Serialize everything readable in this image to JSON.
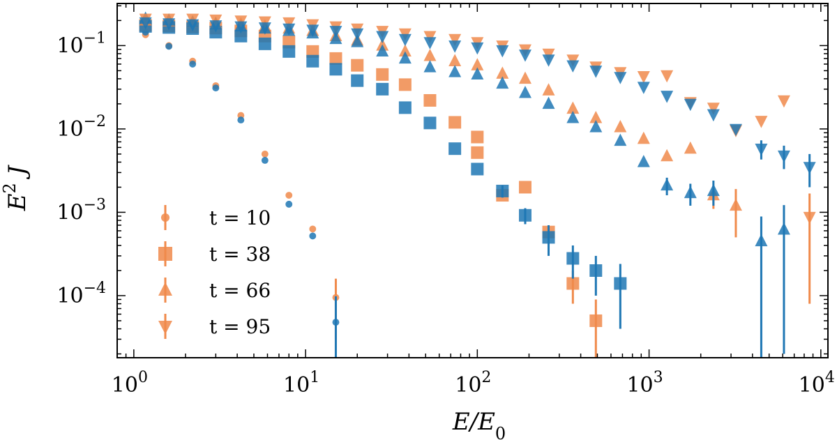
{
  "chart_data": {
    "type": "scatter",
    "x_scale": "log",
    "y_scale": "log",
    "xlim": [
      0.8,
      11000
    ],
    "ylim": [
      1.8e-05,
      0.32
    ],
    "xlabel": "E/E0",
    "ylabel": "E^2 J",
    "x_ticks": [
      {
        "value": 1,
        "base": "10",
        "exp": "0"
      },
      {
        "value": 10,
        "base": "10",
        "exp": "1"
      },
      {
        "value": 100,
        "base": "10",
        "exp": "2"
      },
      {
        "value": 1000,
        "base": "10",
        "exp": "3"
      },
      {
        "value": 10000,
        "base": "10",
        "exp": "4"
      }
    ],
    "y_ticks": [
      {
        "value": 0.1,
        "base": "10",
        "exp": "−1"
      },
      {
        "value": 0.01,
        "base": "10",
        "exp": "−2"
      },
      {
        "value": 0.001,
        "base": "10",
        "exp": "−3"
      },
      {
        "value": 0.0001,
        "base": "10",
        "exp": "−4"
      }
    ],
    "legend_position": "lower-left",
    "colors": {
      "orange": "#f08a4b",
      "blue": "#1f77b4"
    },
    "series": [
      {
        "name": "t = 10",
        "marker": "circle",
        "orange": [
          [
            1.17,
            0.135
          ],
          [
            1.6,
            0.1
          ],
          [
            2.2,
            0.065
          ],
          [
            3.0,
            0.033
          ],
          [
            4.2,
            0.0145
          ],
          [
            5.8,
            0.005
          ],
          [
            8.0,
            0.0016
          ],
          [
            11.0,
            0.00063
          ],
          [
            15.0,
            9.5e-05
          ]
        ],
        "orange_err": [
          0,
          0,
          0,
          0,
          0,
          0,
          0,
          0,
          6.5e-05
        ],
        "blue": [
          [
            1.17,
            0.145
          ],
          [
            1.6,
            0.098
          ],
          [
            2.2,
            0.06
          ],
          [
            3.0,
            0.031
          ],
          [
            4.2,
            0.0128
          ],
          [
            5.8,
            0.0042
          ],
          [
            8.0,
            0.00125
          ],
          [
            11.0,
            0.00052
          ],
          [
            15.0,
            4.8e-05
          ]
        ],
        "blue_err": [
          0,
          0,
          0,
          0,
          0,
          0,
          0,
          0,
          5e-05
        ]
      },
      {
        "name": "t = 38",
        "marker": "square",
        "orange": [
          [
            1.17,
            0.175
          ],
          [
            1.6,
            0.172
          ],
          [
            2.2,
            0.168
          ],
          [
            3.0,
            0.162
          ],
          [
            4.2,
            0.15
          ],
          [
            5.8,
            0.13
          ],
          [
            8.0,
            0.11
          ],
          [
            11.0,
            0.085
          ],
          [
            15.0,
            0.07
          ],
          [
            20.0,
            0.058
          ],
          [
            28.0,
            0.045
          ],
          [
            38.0,
            0.034
          ],
          [
            53.0,
            0.022
          ],
          [
            74.0,
            0.012
          ],
          [
            100.0,
            0.0052
          ],
          [
            100.0,
            0.008
          ],
          [
            140.0,
            0.0016
          ],
          [
            190.0,
            0.002
          ],
          [
            260.0,
            0.00058
          ],
          [
            360.0,
            0.00014
          ],
          [
            490.0,
            5e-05
          ]
        ],
        "orange_err": [
          0,
          0,
          0,
          0,
          0,
          0,
          0,
          0,
          0,
          0,
          0,
          0,
          0,
          0,
          0,
          0,
          0,
          0,
          0.0001,
          6e-05,
          4e-05
        ],
        "blue": [
          [
            1.17,
            0.17
          ],
          [
            1.6,
            0.165
          ],
          [
            2.2,
            0.16
          ],
          [
            3.0,
            0.145
          ],
          [
            4.2,
            0.13
          ],
          [
            5.8,
            0.105
          ],
          [
            8.0,
            0.085
          ],
          [
            11.0,
            0.065
          ],
          [
            15.0,
            0.052
          ],
          [
            20.0,
            0.038
          ],
          [
            28.0,
            0.03
          ],
          [
            38.0,
            0.018
          ],
          [
            53.0,
            0.0118
          ],
          [
            74.0,
            0.0058
          ],
          [
            100.0,
            0.0033
          ],
          [
            140.0,
            0.0018
          ],
          [
            190.0,
            0.00092
          ],
          [
            260.0,
            0.0005
          ],
          [
            360.0,
            0.00028
          ],
          [
            490.0,
            0.0002
          ],
          [
            680.0,
            0.00014
          ]
        ],
        "blue_err": [
          0,
          0,
          0,
          0,
          0,
          0,
          0,
          0,
          0,
          0,
          0,
          0,
          0,
          0,
          0,
          0.0003,
          0.0002,
          0.0002,
          0.00012,
          0.0001,
          0.0001
        ]
      },
      {
        "name": "t = 66",
        "marker": "triangle-up",
        "orange": [
          [
            1.17,
            0.2
          ],
          [
            1.6,
            0.195
          ],
          [
            2.2,
            0.19
          ],
          [
            3.0,
            0.185
          ],
          [
            4.2,
            0.18
          ],
          [
            5.8,
            0.17
          ],
          [
            8.0,
            0.16
          ],
          [
            11.0,
            0.15
          ],
          [
            15.0,
            0.13
          ],
          [
            20.0,
            0.115
          ],
          [
            28.0,
            0.1
          ],
          [
            38.0,
            0.085
          ],
          [
            53.0,
            0.075
          ],
          [
            74.0,
            0.065
          ],
          [
            100.0,
            0.058
          ],
          [
            140.0,
            0.046
          ],
          [
            190.0,
            0.04
          ],
          [
            260.0,
            0.029
          ],
          [
            360.0,
            0.0175
          ],
          [
            490.0,
            0.0135
          ],
          [
            680.0,
            0.0105
          ],
          [
            930.0,
            0.0076
          ],
          [
            1270.0,
            0.0047
          ],
          [
            1740.0,
            0.0058
          ],
          [
            2370.0,
            0.0016
          ],
          [
            3200.0,
            0.0012
          ]
        ],
        "orange_err": [
          0,
          0,
          0,
          0,
          0,
          0,
          0,
          0,
          0,
          0,
          0,
          0,
          0,
          0,
          0,
          0,
          0,
          0,
          0,
          0,
          0,
          0,
          0,
          0,
          0.0005,
          0.0007
        ],
        "blue": [
          [
            1.17,
            0.21
          ],
          [
            1.6,
            0.2
          ],
          [
            2.2,
            0.19
          ],
          [
            3.0,
            0.18
          ],
          [
            4.2,
            0.17
          ],
          [
            5.8,
            0.16
          ],
          [
            8.0,
            0.15
          ],
          [
            11.0,
            0.14
          ],
          [
            15.0,
            0.12
          ],
          [
            20.0,
            0.11
          ],
          [
            28.0,
            0.085
          ],
          [
            38.0,
            0.07
          ],
          [
            53.0,
            0.055
          ],
          [
            74.0,
            0.048
          ],
          [
            100.0,
            0.045
          ],
          [
            140.0,
            0.035
          ],
          [
            190.0,
            0.027
          ],
          [
            260.0,
            0.02
          ],
          [
            360.0,
            0.0135
          ],
          [
            490.0,
            0.0105
          ],
          [
            680.0,
            0.0072
          ],
          [
            930.0,
            0.004
          ],
          [
            1270.0,
            0.0021
          ],
          [
            1740.0,
            0.0017
          ],
          [
            2370.0,
            0.0018
          ],
          [
            4500.0,
            0.00045
          ],
          [
            6100.0,
            0.00062
          ]
        ],
        "blue_err": [
          0,
          0,
          0,
          0,
          0,
          0,
          0,
          0,
          0,
          0,
          0,
          0,
          0,
          0,
          0,
          0,
          0,
          0,
          0,
          0,
          0,
          0,
          0.0005,
          0.0005,
          0.0006,
          0.00044,
          0.0006
        ]
      },
      {
        "name": "t = 95",
        "marker": "triangle-down",
        "orange": [
          [
            1.17,
            0.21
          ],
          [
            1.6,
            0.21
          ],
          [
            2.2,
            0.21
          ],
          [
            3.0,
            0.205
          ],
          [
            4.2,
            0.2
          ],
          [
            5.8,
            0.195
          ],
          [
            8.0,
            0.19
          ],
          [
            11.0,
            0.18
          ],
          [
            15.0,
            0.17
          ],
          [
            20.0,
            0.16
          ],
          [
            28.0,
            0.15
          ],
          [
            38.0,
            0.14
          ],
          [
            53.0,
            0.13
          ],
          [
            74.0,
            0.12
          ],
          [
            100.0,
            0.11
          ],
          [
            140.0,
            0.1
          ],
          [
            190.0,
            0.09
          ],
          [
            260.0,
            0.08
          ],
          [
            360.0,
            0.068
          ],
          [
            490.0,
            0.056
          ],
          [
            680.0,
            0.048
          ],
          [
            930.0,
            0.043
          ],
          [
            1270.0,
            0.044
          ],
          [
            1740.0,
            0.021
          ],
          [
            2370.0,
            0.018
          ],
          [
            3200.0,
            0.0097
          ],
          [
            4500.0,
            0.0125
          ],
          [
            6100.0,
            0.022
          ],
          [
            8600.0,
            0.00088
          ]
        ],
        "orange_err": [
          0,
          0,
          0,
          0,
          0,
          0,
          0,
          0,
          0,
          0,
          0,
          0,
          0,
          0,
          0,
          0,
          0,
          0,
          0,
          0,
          0,
          0,
          0,
          0,
          0,
          0,
          0,
          0,
          0.0008
        ],
        "blue": [
          [
            1.17,
            0.19
          ],
          [
            1.6,
            0.185
          ],
          [
            2.2,
            0.18
          ],
          [
            3.0,
            0.175
          ],
          [
            4.2,
            0.17
          ],
          [
            5.8,
            0.165
          ],
          [
            8.0,
            0.16
          ],
          [
            11.0,
            0.155
          ],
          [
            15.0,
            0.15
          ],
          [
            20.0,
            0.14
          ],
          [
            28.0,
            0.13
          ],
          [
            38.0,
            0.12
          ],
          [
            53.0,
            0.11
          ],
          [
            74.0,
            0.1
          ],
          [
            100.0,
            0.095
          ],
          [
            140.0,
            0.088
          ],
          [
            190.0,
            0.078
          ],
          [
            260.0,
            0.068
          ],
          [
            360.0,
            0.058
          ],
          [
            490.0,
            0.05
          ],
          [
            680.0,
            0.042
          ],
          [
            930.0,
            0.032
          ],
          [
            1270.0,
            0.025
          ],
          [
            1740.0,
            0.02
          ],
          [
            2370.0,
            0.015
          ],
          [
            3200.0,
            0.01
          ],
          [
            4500.0,
            0.0058
          ],
          [
            6100.0,
            0.0048
          ],
          [
            8600.0,
            0.0035
          ]
        ],
        "blue_err": [
          0,
          0,
          0,
          0,
          0,
          0,
          0,
          0,
          0,
          0,
          0,
          0,
          0,
          0,
          0,
          0,
          0,
          0,
          0,
          0,
          0,
          0,
          0,
          0,
          0,
          0,
          0.0015,
          0.0015,
          0.0015
        ]
      }
    ]
  }
}
